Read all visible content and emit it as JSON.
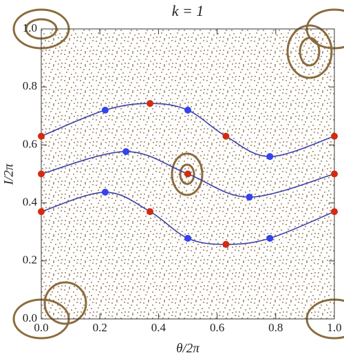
{
  "chart_data": {
    "type": "scatter",
    "title": "k = 1",
    "xlabel": "θ/2π",
    "ylabel": "I/2π",
    "xlim": [
      0,
      1
    ],
    "ylim": [
      0,
      1
    ],
    "xticks": [
      {
        "value": 0,
        "label": "0.0"
      },
      {
        "value": 0.2,
        "label": "0.2"
      },
      {
        "value": 0.4,
        "label": "0.4"
      },
      {
        "value": 0.6,
        "label": "0.6"
      },
      {
        "value": 0.8,
        "label": "0.8"
      },
      {
        "value": 1,
        "label": "1.0"
      }
    ],
    "yticks": [
      {
        "value": 0,
        "label": "0.0"
      },
      {
        "value": 0.2,
        "label": "0.2"
      },
      {
        "value": 0.4,
        "label": "0.4"
      },
      {
        "value": 0.6,
        "label": "0.6"
      },
      {
        "value": 0.8,
        "label": "0.8"
      },
      {
        "value": 1,
        "label": "1.0"
      }
    ],
    "series": [
      {
        "type": "line",
        "color": "#3b3fa6",
        "x": [
          0,
          0.218,
          0.371,
          0.5,
          0.63,
          0.78,
          1
        ],
        "values": [
          0.63,
          0.72,
          0.743,
          0.72,
          0.63,
          0.56,
          0.63
        ]
      },
      {
        "type": "line",
        "color": "#3b3fa6",
        "x": [
          0,
          0.289,
          0.5,
          0.71,
          1
        ],
        "values": [
          0.5,
          0.577,
          0.5,
          0.42,
          0.5
        ]
      },
      {
        "type": "line",
        "color": "#3b3fa6",
        "x": [
          0,
          0.218,
          0.371,
          0.5,
          0.63,
          0.78,
          1
        ],
        "values": [
          0.37,
          0.437,
          0.37,
          0.278,
          0.257,
          0.278,
          0.37
        ]
      },
      {
        "type": "scatter",
        "color": "#d42a10",
        "x": [
          0,
          0.371,
          0.63,
          1,
          0,
          0.5,
          1,
          0,
          0.371,
          0.63,
          1
        ],
        "values": [
          0.63,
          0.743,
          0.63,
          0.63,
          0.5,
          0.5,
          0.5,
          0.37,
          0.37,
          0.257,
          0.37
        ]
      },
      {
        "type": "scatter",
        "color": "#3344ee",
        "x": [
          0.218,
          0.5,
          0.78,
          0.289,
          0.71,
          0.218,
          0.5,
          0.78
        ],
        "values": [
          0.72,
          0.72,
          0.56,
          0.577,
          0.42,
          0.437,
          0.278,
          0.278
        ]
      }
    ]
  }
}
